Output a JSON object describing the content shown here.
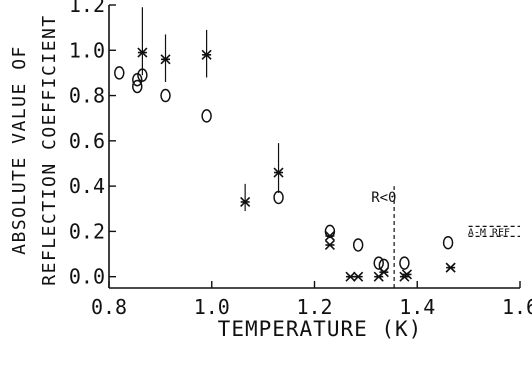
{
  "chart_data": {
    "type": "scatter",
    "title": "",
    "xlabel": "TEMPERATURE (K)",
    "ylabel_lines": [
      "ABSOLUTE VALUE OF",
      "REFLECTION COEFFICIENT"
    ],
    "xlim": [
      0.8,
      1.6
    ],
    "ylim": [
      -0.05,
      1.2
    ],
    "x_ticks": [
      0.8,
      1.0,
      1.2,
      1.4,
      1.6
    ],
    "x_tick_labels": [
      "0.8",
      "1.0",
      "1.2",
      "1.4",
      "1.6"
    ],
    "y_ticks": [
      0.0,
      0.2,
      0.4,
      0.6,
      0.8,
      1.0,
      1.2
    ],
    "y_tick_labels": [
      "0.0",
      "0.2",
      "0.4",
      "0.6",
      "0.8",
      "1.0",
      "1.2"
    ],
    "grid": false,
    "series": [
      {
        "marker": "circle",
        "points": [
          {
            "x": 0.82,
            "y": 0.9
          },
          {
            "x": 0.855,
            "y": 0.84
          },
          {
            "x": 0.855,
            "y": 0.87
          },
          {
            "x": 0.865,
            "y": 0.89
          },
          {
            "x": 0.91,
            "y": 0.8
          },
          {
            "x": 0.99,
            "y": 0.71
          },
          {
            "x": 1.13,
            "y": 0.35
          },
          {
            "x": 1.23,
            "y": 0.2
          },
          {
            "x": 1.285,
            "y": 0.14
          },
          {
            "x": 1.325,
            "y": 0.06
          },
          {
            "x": 1.335,
            "y": 0.05
          },
          {
            "x": 1.375,
            "y": 0.06
          },
          {
            "x": 1.46,
            "y": 0.15
          }
        ]
      },
      {
        "marker": "cross",
        "points": [
          {
            "x": 0.865,
            "y": 0.99,
            "err_low": 0.89,
            "err_high": 1.19
          },
          {
            "x": 0.91,
            "y": 0.96,
            "err_low": 0.86,
            "err_high": 1.07
          },
          {
            "x": 0.99,
            "y": 0.98,
            "err_low": 0.88,
            "err_high": 1.09
          },
          {
            "x": 1.065,
            "y": 0.33,
            "err_low": 0.29,
            "err_high": 0.41
          },
          {
            "x": 1.13,
            "y": 0.46,
            "err_low": 0.37,
            "err_high": 0.59
          },
          {
            "x": 1.23,
            "y": 0.14
          },
          {
            "x": 1.23,
            "y": 0.18
          },
          {
            "x": 1.27,
            "y": 0.0
          },
          {
            "x": 1.285,
            "y": 0.0
          },
          {
            "x": 1.325,
            "y": 0.0
          },
          {
            "x": 1.335,
            "y": 0.02
          },
          {
            "x": 1.375,
            "y": 0.0
          },
          {
            "x": 1.38,
            "y": 0.01
          },
          {
            "x": 1.465,
            "y": 0.04
          }
        ]
      }
    ],
    "annotations": [
      {
        "text": "R<0",
        "x": 1.335,
        "y": 0.33
      },
      {
        "text": "A-M REF",
        "x": 1.6,
        "y": 0.2
      }
    ],
    "reference_lines": [
      {
        "orientation": "vertical",
        "x": 1.355,
        "y_from": -0.05,
        "y_to": 0.4,
        "style": "dashed"
      },
      {
        "orientation": "horizontal",
        "y": 0.2,
        "x_from": 1.5,
        "x_to": 1.6,
        "style": "dashed"
      }
    ]
  }
}
